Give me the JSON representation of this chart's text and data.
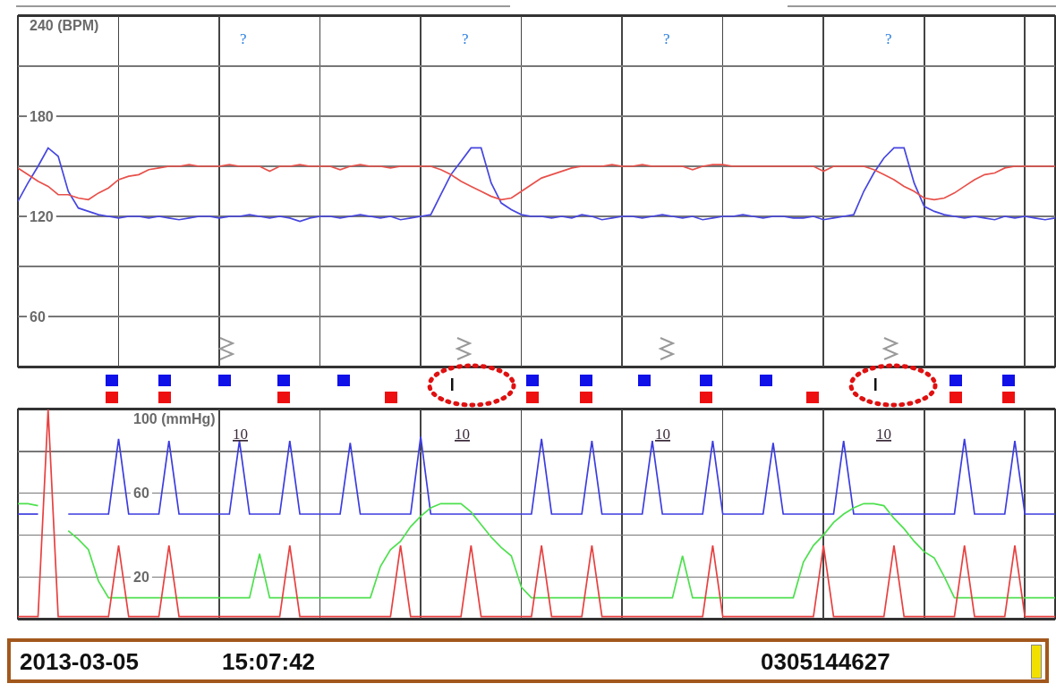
{
  "chart_data": [
    {
      "type": "line",
      "categories": [
        null,
        null,
        null,
        null,
        null,
        null,
        null,
        null,
        null,
        null,
        null,
        null,
        null,
        null,
        null,
        null,
        null,
        null,
        null,
        null,
        null,
        null,
        null,
        null,
        null,
        null,
        null,
        null,
        null,
        null,
        null,
        null,
        null,
        null,
        null,
        null,
        null,
        null,
        null,
        null,
        null,
        null,
        null,
        null,
        null,
        null,
        null,
        null,
        null,
        null,
        null,
        null,
        null,
        null,
        null,
        null,
        null,
        null,
        null,
        null,
        null,
        null,
        null,
        null,
        null,
        null,
        null,
        null,
        null,
        null,
        null,
        null,
        null,
        null,
        null,
        null,
        null,
        null,
        null,
        null,
        null,
        null,
        null,
        null,
        null,
        null,
        null,
        null,
        null,
        null,
        null,
        null,
        null,
        null,
        null,
        null,
        null,
        null,
        null,
        null,
        null,
        null,
        null,
        null
      ],
      "series": [
        {
          "color": "#4646e0",
          "values": [
            129,
            140,
            150,
            161,
            156,
            135,
            125,
            123,
            121,
            120,
            119,
            120,
            120,
            119,
            120,
            119,
            118,
            119,
            120,
            120,
            119,
            120,
            120,
            121,
            120,
            119,
            120,
            119,
            117,
            119,
            120,
            120,
            119,
            120,
            121,
            120,
            119,
            120,
            118,
            119,
            120,
            121,
            133,
            145,
            153,
            161,
            161,
            140,
            128,
            124,
            121,
            120,
            120,
            119,
            120,
            119,
            121,
            120,
            118,
            119,
            120,
            120,
            119,
            120,
            121,
            120,
            119,
            120,
            118,
            119,
            120,
            120,
            121,
            120,
            119,
            120,
            120,
            119,
            119,
            120,
            118,
            119,
            120,
            121,
            135,
            146,
            155,
            161,
            161,
            140,
            126,
            123,
            121,
            120,
            119,
            120,
            119,
            118,
            120,
            119,
            120,
            119,
            118,
            119
          ]
        },
        {
          "color": "#e8504a",
          "values": [
            149,
            145,
            141,
            138,
            133,
            133,
            131,
            130,
            134,
            137,
            142,
            144,
            145,
            148,
            149,
            150,
            150,
            151,
            150,
            150,
            150,
            151,
            150,
            150,
            150,
            147,
            150,
            150,
            151,
            150,
            150,
            150,
            148,
            150,
            151,
            150,
            150,
            149,
            150,
            150,
            150,
            150,
            148,
            145,
            141,
            138,
            135,
            132,
            130,
            131,
            135,
            139,
            143,
            145,
            147,
            149,
            150,
            150,
            150,
            151,
            150,
            150,
            151,
            150,
            150,
            150,
            150,
            148,
            150,
            151,
            151,
            150,
            150,
            150,
            150,
            150,
            150,
            150,
            150,
            150,
            147,
            150,
            150,
            150,
            150,
            148,
            145,
            142,
            138,
            135,
            131,
            130,
            131,
            134,
            138,
            142,
            145,
            146,
            149,
            150,
            150,
            150,
            150,
            150
          ]
        }
      ],
      "ylim": [
        30,
        240
      ],
      "yticks": [
        60,
        {
          "value": 90,
          "label": null
        },
        120,
        {
          "value": 150,
          "label": null
        },
        180,
        {
          "value": 210,
          "label": null
        },
        {
          "value": 240,
          "label": "240 (BPM)"
        }
      ],
      "grid": true,
      "tick_labels": "y",
      "annotations": [
        "?",
        "?",
        "?",
        "?"
      ]
    },
    {
      "type": "line",
      "categories": [
        null,
        null,
        null,
        null,
        null,
        null,
        null,
        null,
        null,
        null,
        null,
        null,
        null,
        null,
        null,
        null,
        null,
        null,
        null,
        null,
        null,
        null,
        null,
        null,
        null,
        null,
        null,
        null,
        null,
        null,
        null,
        null,
        null,
        null,
        null,
        null,
        null,
        null,
        null,
        null,
        null,
        null,
        null,
        null,
        null,
        null,
        null,
        null,
        null,
        null,
        null,
        null,
        null,
        null,
        null,
        null,
        null,
        null,
        null,
        null,
        null,
        null,
        null,
        null,
        null,
        null,
        null,
        null,
        null,
        null,
        null,
        null,
        null,
        null,
        null,
        null,
        null,
        null,
        null,
        null,
        null,
        null,
        null,
        null,
        null,
        null,
        null,
        null,
        null,
        null,
        null,
        null,
        null,
        null,
        null,
        null,
        null,
        null,
        null,
        null,
        null,
        null,
        null,
        null
      ],
      "series": [
        {
          "color": "#3c3ce0",
          "values": [
            50,
            50,
            50,
            null,
            null,
            50,
            50,
            50,
            50,
            50,
            86,
            50,
            50,
            50,
            50,
            85,
            50,
            50,
            50,
            50,
            50,
            50,
            85,
            50,
            50,
            50,
            50,
            85,
            50,
            50,
            50,
            50,
            50,
            84,
            50,
            50,
            50,
            50,
            50,
            50,
            87,
            50,
            50,
            50,
            50,
            50,
            50,
            50,
            50,
            50,
            50,
            50,
            86,
            50,
            50,
            50,
            50,
            85,
            50,
            50,
            50,
            50,
            50,
            85,
            50,
            50,
            50,
            50,
            50,
            85,
            50,
            50,
            50,
            50,
            50,
            84,
            50,
            50,
            50,
            50,
            50,
            50,
            85,
            50,
            50,
            50,
            50,
            50,
            50,
            50,
            50,
            50,
            50,
            50,
            86,
            50,
            50,
            50,
            50,
            85,
            50,
            50,
            50,
            50
          ]
        },
        {
          "color": "#4ee04e",
          "values": [
            55,
            55,
            54,
            null,
            null,
            42,
            38,
            33,
            18,
            10,
            10,
            10,
            10,
            10,
            10,
            10,
            10,
            10,
            10,
            10,
            10,
            10,
            10,
            10,
            31,
            10,
            10,
            10,
            10,
            10,
            10,
            10,
            10,
            10,
            10,
            10,
            25,
            33,
            37,
            44,
            49,
            53,
            55,
            55,
            55,
            51,
            45,
            39,
            34,
            30,
            15,
            10,
            10,
            10,
            10,
            10,
            10,
            10,
            10,
            10,
            10,
            10,
            10,
            10,
            10,
            10,
            30,
            10,
            10,
            10,
            10,
            10,
            10,
            10,
            10,
            10,
            10,
            10,
            27,
            35,
            40,
            46,
            50,
            53,
            55,
            55,
            54,
            48,
            43,
            37,
            32,
            29,
            20,
            10,
            10,
            10,
            10,
            10,
            10,
            10,
            10,
            10,
            10,
            10
          ]
        },
        {
          "color": "#e84040",
          "values": [
            1,
            1,
            1,
            100,
            1,
            1,
            1,
            1,
            1,
            1,
            35,
            1,
            1,
            1,
            1,
            35,
            1,
            1,
            1,
            1,
            1,
            1,
            1,
            1,
            1,
            1,
            1,
            35,
            1,
            1,
            1,
            1,
            1,
            1,
            1,
            1,
            1,
            1,
            35,
            1,
            1,
            1,
            1,
            1,
            1,
            35,
            1,
            1,
            1,
            1,
            1,
            1,
            35,
            1,
            1,
            1,
            1,
            35,
            1,
            1,
            1,
            1,
            1,
            1,
            1,
            1,
            1,
            1,
            1,
            35,
            1,
            1,
            1,
            1,
            1,
            1,
            1,
            1,
            1,
            1,
            35,
            1,
            1,
            1,
            1,
            1,
            1,
            35,
            1,
            1,
            1,
            1,
            1,
            1,
            35,
            1,
            1,
            1,
            1,
            35,
            1,
            1,
            1,
            1
          ]
        }
      ],
      "ylim": [
        0,
        100
      ],
      "yticks": [
        20,
        {
          "value": 40,
          "label": null
        },
        60,
        {
          "value": 80,
          "label": null
        },
        {
          "value": 100,
          "label": "100 (mmHg)"
        }
      ],
      "grid": true,
      "tick_labels": "y",
      "annotations": [
        "10",
        "10",
        "10",
        "10",
        "2013-03-05",
        "15:07:42",
        "0305144627"
      ]
    }
  ]
}
